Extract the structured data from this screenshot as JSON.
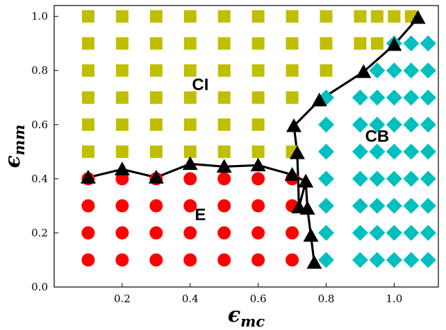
{
  "chart_data": {
    "type": "scatter",
    "title": "",
    "xlabel": "ϵ",
    "xlabel_sub": "mc",
    "ylabel": "ϵ",
    "ylabel_sub": "mm",
    "xlim": [
      0.0,
      1.13
    ],
    "ylim": [
      0.0,
      1.04
    ],
    "x_ticks": [
      0.2,
      0.4,
      0.6,
      0.8,
      1.0
    ],
    "x_tick_labels": [
      "0.2",
      "0.4",
      "0.6",
      "0.8",
      "1.0"
    ],
    "y_ticks": [
      0.0,
      0.2,
      0.4,
      0.6,
      0.8,
      1.0
    ],
    "y_tick_labels": [
      "0.0",
      "0.2",
      "0.4",
      "0.6",
      "0.8",
      "1.0"
    ],
    "grid": false,
    "colors": {
      "CI": "#bfbf00",
      "E": "#ff0000",
      "CB": "#00bfbf",
      "boundary": "#000000"
    },
    "region_labels": [
      {
        "text": "CI",
        "x": 0.43,
        "y": 0.75
      },
      {
        "text": "E",
        "x": 0.43,
        "y": 0.27
      },
      {
        "text": "CB",
        "x": 0.95,
        "y": 0.56
      }
    ],
    "series": [
      {
        "marker": "square",
        "color": "#bfbf00",
        "points": [
          [
            0.1,
            1.0
          ],
          [
            0.2,
            1.0
          ],
          [
            0.3,
            1.0
          ],
          [
            0.4,
            1.0
          ],
          [
            0.5,
            1.0
          ],
          [
            0.6,
            1.0
          ],
          [
            0.7,
            1.0
          ],
          [
            0.8,
            1.0
          ],
          [
            0.9,
            1.0
          ],
          [
            0.95,
            1.0
          ],
          [
            1.0,
            1.0
          ],
          [
            1.05,
            1.0
          ],
          [
            0.1,
            0.9
          ],
          [
            0.2,
            0.9
          ],
          [
            0.3,
            0.9
          ],
          [
            0.4,
            0.9
          ],
          [
            0.5,
            0.9
          ],
          [
            0.6,
            0.9
          ],
          [
            0.7,
            0.9
          ],
          [
            0.8,
            0.9
          ],
          [
            0.9,
            0.9
          ],
          [
            0.95,
            0.9
          ],
          [
            0.1,
            0.8
          ],
          [
            0.2,
            0.8
          ],
          [
            0.3,
            0.8
          ],
          [
            0.4,
            0.8
          ],
          [
            0.5,
            0.8
          ],
          [
            0.6,
            0.8
          ],
          [
            0.7,
            0.8
          ],
          [
            0.8,
            0.8
          ],
          [
            0.1,
            0.7
          ],
          [
            0.2,
            0.7
          ],
          [
            0.3,
            0.7
          ],
          [
            0.4,
            0.7
          ],
          [
            0.5,
            0.7
          ],
          [
            0.6,
            0.7
          ],
          [
            0.7,
            0.7
          ],
          [
            0.1,
            0.6
          ],
          [
            0.2,
            0.6
          ],
          [
            0.3,
            0.6
          ],
          [
            0.4,
            0.6
          ],
          [
            0.5,
            0.6
          ],
          [
            0.6,
            0.6
          ],
          [
            0.1,
            0.5
          ],
          [
            0.2,
            0.5
          ],
          [
            0.3,
            0.5
          ],
          [
            0.4,
            0.5
          ],
          [
            0.5,
            0.5
          ],
          [
            0.6,
            0.5
          ],
          [
            0.7,
            0.5
          ]
        ]
      },
      {
        "marker": "circle",
        "color": "#ff0000",
        "points": [
          [
            0.1,
            0.4
          ],
          [
            0.2,
            0.4
          ],
          [
            0.3,
            0.4
          ],
          [
            0.4,
            0.4
          ],
          [
            0.5,
            0.4
          ],
          [
            0.6,
            0.4
          ],
          [
            0.7,
            0.4
          ],
          [
            0.1,
            0.3
          ],
          [
            0.2,
            0.3
          ],
          [
            0.3,
            0.3
          ],
          [
            0.4,
            0.3
          ],
          [
            0.5,
            0.3
          ],
          [
            0.6,
            0.3
          ],
          [
            0.7,
            0.3
          ],
          [
            0.1,
            0.2
          ],
          [
            0.2,
            0.2
          ],
          [
            0.3,
            0.2
          ],
          [
            0.4,
            0.2
          ],
          [
            0.5,
            0.2
          ],
          [
            0.6,
            0.2
          ],
          [
            0.7,
            0.2
          ],
          [
            0.1,
            0.1
          ],
          [
            0.2,
            0.1
          ],
          [
            0.3,
            0.1
          ],
          [
            0.4,
            0.1
          ],
          [
            0.5,
            0.1
          ],
          [
            0.6,
            0.1
          ],
          [
            0.7,
            0.1
          ]
        ]
      },
      {
        "marker": "diamond",
        "color": "#00bfbf",
        "points": [
          [
            1.0,
            0.9
          ],
          [
            1.05,
            0.9
          ],
          [
            1.1,
            0.9
          ],
          [
            0.95,
            0.8
          ],
          [
            1.0,
            0.8
          ],
          [
            1.05,
            0.8
          ],
          [
            1.1,
            0.8
          ],
          [
            0.8,
            0.7
          ],
          [
            0.9,
            0.7
          ],
          [
            0.95,
            0.7
          ],
          [
            1.0,
            0.7
          ],
          [
            1.05,
            0.7
          ],
          [
            1.1,
            0.7
          ],
          [
            0.8,
            0.6
          ],
          [
            0.9,
            0.6
          ],
          [
            0.95,
            0.6
          ],
          [
            1.0,
            0.6
          ],
          [
            1.05,
            0.6
          ],
          [
            1.1,
            0.6
          ],
          [
            0.8,
            0.5
          ],
          [
            0.9,
            0.5
          ],
          [
            0.95,
            0.5
          ],
          [
            1.0,
            0.5
          ],
          [
            1.05,
            0.5
          ],
          [
            1.1,
            0.5
          ],
          [
            0.8,
            0.4
          ],
          [
            0.9,
            0.4
          ],
          [
            0.95,
            0.4
          ],
          [
            1.0,
            0.4
          ],
          [
            1.05,
            0.4
          ],
          [
            1.1,
            0.4
          ],
          [
            0.8,
            0.3
          ],
          [
            0.9,
            0.3
          ],
          [
            0.95,
            0.3
          ],
          [
            1.0,
            0.3
          ],
          [
            1.05,
            0.3
          ],
          [
            1.1,
            0.3
          ],
          [
            0.8,
            0.2
          ],
          [
            0.9,
            0.2
          ],
          [
            0.95,
            0.2
          ],
          [
            1.0,
            0.2
          ],
          [
            1.05,
            0.2
          ],
          [
            1.1,
            0.2
          ],
          [
            0.8,
            0.1
          ],
          [
            0.9,
            0.1
          ],
          [
            0.95,
            0.1
          ],
          [
            1.0,
            0.1
          ],
          [
            1.05,
            0.1
          ],
          [
            1.1,
            0.1
          ]
        ]
      },
      {
        "marker": "triangle",
        "color": "#000000",
        "line": true,
        "points": [
          [
            0.1,
            0.405
          ],
          [
            0.2,
            0.435
          ],
          [
            0.3,
            0.405
          ],
          [
            0.4,
            0.455
          ],
          [
            0.5,
            0.445
          ],
          [
            0.6,
            0.45
          ],
          [
            0.7,
            0.415
          ],
          [
            0.74,
            0.39
          ],
          [
            0.745,
            0.29
          ],
          [
            0.755,
            0.19
          ],
          [
            0.765,
            0.09
          ]
        ]
      },
      {
        "marker": "triangle",
        "color": "#000000",
        "line": true,
        "points": [
          [
            0.74,
            0.39
          ],
          [
            0.72,
            0.295
          ],
          [
            0.715,
            0.495
          ],
          [
            0.705,
            0.595
          ],
          [
            0.78,
            0.69
          ],
          [
            0.91,
            0.795
          ],
          [
            1.0,
            0.895
          ],
          [
            1.07,
            0.995
          ]
        ]
      }
    ]
  }
}
